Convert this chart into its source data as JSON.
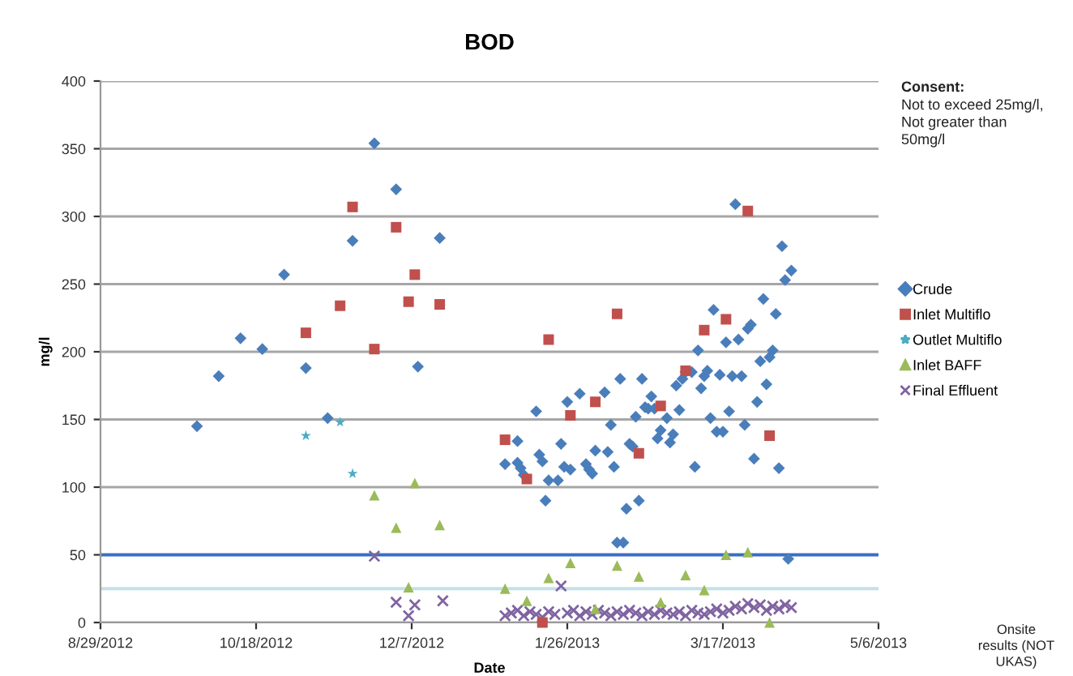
{
  "chart_data": {
    "type": "scatter",
    "title": "BOD",
    "xlabel": "Date",
    "ylabel": "mg/l",
    "annotations": [
      "Consent:",
      "Not to exceed 25mg/l,\nNot greater than\n50mg/l",
      "Onsite\nresults (NOT\nUKAS)"
    ],
    "xlim": [
      "2012-08-29",
      "2013-05-06"
    ],
    "xticks": [
      {
        "value": "2012-08-29",
        "label": "8/29/2012"
      },
      {
        "value": "2012-10-18",
        "label": "10/18/2012"
      },
      {
        "value": "2012-12-07",
        "label": "12/7/2012"
      },
      {
        "value": "2013-01-26",
        "label": "1/26/2013"
      },
      {
        "value": "2013-03-17",
        "label": "3/17/2013"
      },
      {
        "value": "2013-05-06",
        "label": "5/6/2013"
      }
    ],
    "ylim": [
      0,
      400
    ],
    "yticks": [
      0,
      50,
      100,
      150,
      200,
      250,
      300,
      350,
      400
    ],
    "grid": "y",
    "legend": "right",
    "ref_lines": [
      {
        "axis": "y",
        "value": 50,
        "color": "#3a6fc4"
      },
      {
        "axis": "y",
        "value": 25,
        "color": "#c4e0ea"
      }
    ],
    "series": [
      {
        "name": "Crude",
        "color": "#4a7ebb",
        "marker": "diamond",
        "x": [
          "2012-09-29",
          "2012-10-06",
          "2012-10-13",
          "2012-10-20",
          "2012-10-27",
          "2012-11-03",
          "2012-11-10",
          "2012-11-18",
          "2012-11-25",
          "2012-12-02",
          "2012-12-09",
          "2012-12-16",
          "2013-01-06",
          "2013-01-10",
          "2013-01-10",
          "2013-01-11",
          "2013-01-12",
          "2013-01-16",
          "2013-01-17",
          "2013-01-18",
          "2013-01-19",
          "2013-01-20",
          "2013-01-23",
          "2013-01-24",
          "2013-01-25",
          "2013-01-26",
          "2013-01-27",
          "2013-01-30",
          "2013-02-01",
          "2013-02-02",
          "2013-02-03",
          "2013-02-04",
          "2013-02-07",
          "2013-02-08",
          "2013-02-09",
          "2013-02-10",
          "2013-02-11",
          "2013-02-12",
          "2013-02-13",
          "2013-02-14",
          "2013-02-15",
          "2013-02-16",
          "2013-02-17",
          "2013-02-18",
          "2013-02-19",
          "2013-02-20",
          "2013-02-21",
          "2013-02-22",
          "2013-02-23",
          "2013-02-24",
          "2013-02-25",
          "2013-02-27",
          "2013-02-28",
          "2013-03-01",
          "2013-03-02",
          "2013-03-03",
          "2013-03-04",
          "2013-03-05",
          "2013-03-07",
          "2013-03-08",
          "2013-03-09",
          "2013-03-10",
          "2013-03-11",
          "2013-03-12",
          "2013-03-13",
          "2013-03-14",
          "2013-03-15",
          "2013-03-16",
          "2013-03-17",
          "2013-03-18",
          "2013-03-19",
          "2013-03-20",
          "2013-03-21",
          "2013-03-22",
          "2013-03-23",
          "2013-03-24",
          "2013-03-25",
          "2013-03-26",
          "2013-03-27",
          "2013-03-28",
          "2013-03-29",
          "2013-03-30",
          "2013-03-31",
          "2013-04-01",
          "2013-04-02",
          "2013-04-03",
          "2013-04-04",
          "2013-04-05",
          "2013-04-06",
          "2013-04-07",
          "2013-04-08"
        ],
        "values": [
          145,
          182,
          210,
          202,
          257,
          188,
          151,
          282,
          354,
          320,
          189,
          284,
          117,
          134,
          118,
          114,
          109,
          156,
          124,
          119,
          90,
          105,
          105,
          132,
          115,
          163,
          113,
          169,
          117,
          113,
          110,
          127,
          170,
          126,
          146,
          115,
          59,
          180,
          59,
          84,
          132,
          130,
          152,
          90,
          180,
          159,
          158,
          167,
          158,
          136,
          142,
          151,
          133,
          139,
          175,
          157,
          180,
          185,
          185,
          115,
          201,
          173,
          182,
          186,
          151,
          231,
          141,
          183,
          141,
          207,
          156,
          182,
          309,
          209,
          182,
          146,
          217,
          220,
          121,
          163,
          193,
          239,
          176,
          196,
          201,
          228,
          114,
          278,
          253,
          47,
          260
        ]
      },
      {
        "name": "Inlet Multiflo",
        "color": "#c0504d",
        "marker": "square",
        "x": [
          "2012-11-03",
          "2012-11-14",
          "2012-11-18",
          "2012-11-25",
          "2012-12-02",
          "2012-12-06",
          "2012-12-08",
          "2012-12-16",
          "2013-01-06",
          "2013-01-13",
          "2013-01-18",
          "2013-01-20",
          "2013-01-27",
          "2013-02-04",
          "2013-02-11",
          "2013-02-18",
          "2013-02-25",
          "2013-03-05",
          "2013-03-11",
          "2013-03-18",
          "2013-03-25",
          "2013-04-01"
        ],
        "values": [
          214,
          234,
          307,
          202,
          292,
          237,
          257,
          235,
          135,
          106,
          0,
          209,
          153,
          163,
          228,
          125,
          160,
          186,
          216,
          224,
          304,
          138
        ]
      },
      {
        "name": "Outlet Multiflo",
        "color": "#4bacc6",
        "marker": "star",
        "x": [
          "2012-11-03",
          "2012-11-14",
          "2012-11-18"
        ],
        "values": [
          138,
          148,
          110
        ]
      },
      {
        "name": "Inlet BAFF",
        "color": "#9bbb59",
        "marker": "triangle",
        "x": [
          "2012-11-25",
          "2012-12-02",
          "2012-12-06",
          "2012-12-08",
          "2012-12-16",
          "2013-01-06",
          "2013-01-13",
          "2013-01-20",
          "2013-01-27",
          "2013-02-04",
          "2013-02-11",
          "2013-02-18",
          "2013-02-25",
          "2013-03-05",
          "2013-03-11",
          "2013-03-18",
          "2013-03-25",
          "2013-04-01"
        ],
        "values": [
          94,
          70,
          26,
          103,
          72,
          25,
          16,
          33,
          44,
          10,
          42,
          34,
          15,
          35,
          24,
          50,
          52,
          0
        ]
      },
      {
        "name": "Final Effluent",
        "color": "#8064a2",
        "marker": "cross",
        "x": [
          "2012-11-25",
          "2012-12-02",
          "2012-12-06",
          "2012-12-08",
          "2012-12-17",
          "2013-01-06",
          "2013-01-08",
          "2013-01-10",
          "2013-01-12",
          "2013-01-14",
          "2013-01-16",
          "2013-01-18",
          "2013-01-20",
          "2013-01-22",
          "2013-01-24",
          "2013-01-26",
          "2013-01-28",
          "2013-01-30",
          "2013-02-01",
          "2013-02-03",
          "2013-02-05",
          "2013-02-07",
          "2013-02-09",
          "2013-02-11",
          "2013-02-13",
          "2013-02-15",
          "2013-02-17",
          "2013-02-19",
          "2013-02-21",
          "2013-02-23",
          "2013-02-25",
          "2013-02-27",
          "2013-03-01",
          "2013-03-03",
          "2013-03-05",
          "2013-03-07",
          "2013-03-09",
          "2013-03-11",
          "2013-03-13",
          "2013-03-15",
          "2013-03-17",
          "2013-03-19",
          "2013-03-21",
          "2013-03-23",
          "2013-03-25",
          "2013-03-27",
          "2013-03-29",
          "2013-03-31",
          "2013-04-02",
          "2013-04-04",
          "2013-04-06",
          "2013-04-08"
        ],
        "values": [
          49,
          15,
          5,
          13,
          16,
          5,
          7,
          9,
          5,
          8,
          6,
          4,
          8,
          6,
          27,
          7,
          9,
          5,
          8,
          6,
          9,
          7,
          5,
          8,
          6,
          9,
          7,
          5,
          8,
          6,
          9,
          7,
          6,
          8,
          5,
          9,
          7,
          6,
          8,
          10,
          7,
          9,
          12,
          10,
          14,
          11,
          13,
          9,
          12,
          10,
          13,
          11
        ]
      }
    ]
  }
}
